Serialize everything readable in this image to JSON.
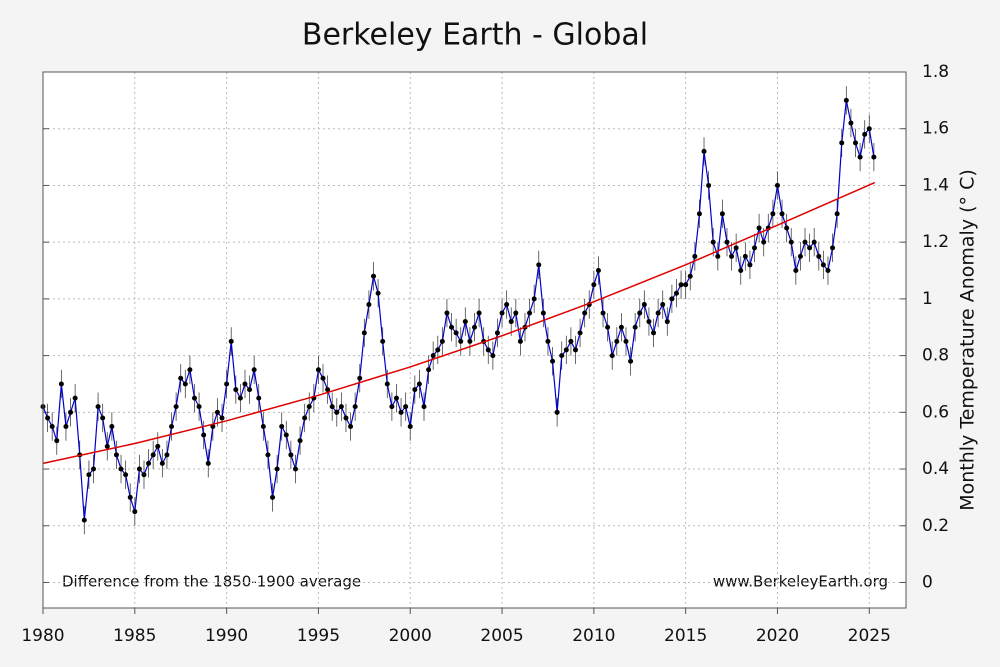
{
  "chart_data": {
    "type": "line",
    "title": "Berkeley Earth - Global",
    "y_label": "Monthly Temperature Anomaly (° C)",
    "annotations": [
      "Difference from the 1850-1900 average",
      "www.BerkeleyEarth.org"
    ],
    "xlim": [
      1980,
      2027
    ],
    "xticks": [
      1980,
      1985,
      1990,
      1995,
      2000,
      2005,
      2010,
      2015,
      2020,
      2025
    ],
    "ylim": [
      -0.09,
      1.8
    ],
    "yticks": [
      0,
      0.2,
      0.4,
      0.6,
      0.8,
      1,
      1.2,
      1.4,
      1.6,
      1.8
    ],
    "grid": true,
    "series": [
      {
        "color": "#0000cc",
        "marker_color": "#000000",
        "error": 0.05,
        "x": [
          1980,
          1980.25,
          1980.5,
          1980.75,
          1981,
          1981.25,
          1981.5,
          1981.75,
          1982,
          1982.25,
          1982.5,
          1982.75,
          1983,
          1983.25,
          1983.5,
          1983.75,
          1984,
          1984.25,
          1984.5,
          1984.75,
          1985,
          1985.25,
          1985.5,
          1985.75,
          1986,
          1986.25,
          1986.5,
          1986.75,
          1987,
          1987.25,
          1987.5,
          1987.75,
          1988,
          1988.25,
          1988.5,
          1988.75,
          1989,
          1989.25,
          1989.5,
          1989.75,
          1990,
          1990.25,
          1990.5,
          1990.75,
          1991,
          1991.25,
          1991.5,
          1991.75,
          1992,
          1992.25,
          1992.5,
          1992.75,
          1993,
          1993.25,
          1993.5,
          1993.75,
          1994,
          1994.25,
          1994.5,
          1994.75,
          1995,
          1995.25,
          1995.5,
          1995.75,
          1996,
          1996.25,
          1996.5,
          1996.75,
          1997,
          1997.25,
          1997.5,
          1997.75,
          1998,
          1998.25,
          1998.5,
          1998.75,
          1999,
          1999.25,
          1999.5,
          1999.75,
          2000,
          2000.25,
          2000.5,
          2000.75,
          2001,
          2001.25,
          2001.5,
          2001.75,
          2002,
          2002.25,
          2002.5,
          2002.75,
          2003,
          2003.25,
          2003.5,
          2003.75,
          2004,
          2004.25,
          2004.5,
          2004.75,
          2005,
          2005.25,
          2005.5,
          2005.75,
          2006,
          2006.25,
          2006.5,
          2006.75,
          2007,
          2007.25,
          2007.5,
          2007.75,
          2008,
          2008.25,
          2008.5,
          2008.75,
          2009,
          2009.25,
          2009.5,
          2009.75,
          2010,
          2010.25,
          2010.5,
          2010.75,
          2011,
          2011.25,
          2011.5,
          2011.75,
          2012,
          2012.25,
          2012.5,
          2012.75,
          2013,
          2013.25,
          2013.5,
          2013.75,
          2014,
          2014.25,
          2014.5,
          2014.75,
          2015,
          2015.25,
          2015.5,
          2015.75,
          2016,
          2016.25,
          2016.5,
          2016.75,
          2017,
          2017.25,
          2017.5,
          2017.75,
          2018,
          2018.25,
          2018.5,
          2018.75,
          2019,
          2019.25,
          2019.5,
          2019.75,
          2020,
          2020.25,
          2020.5,
          2020.75,
          2021,
          2021.25,
          2021.5,
          2021.75,
          2022,
          2022.25,
          2022.5,
          2022.75,
          2023,
          2023.25,
          2023.5,
          2023.75,
          2024,
          2024.25,
          2024.5,
          2024.75,
          2025,
          2025.25
        ],
        "values": [
          0.62,
          0.58,
          0.55,
          0.5,
          0.7,
          0.55,
          0.6,
          0.65,
          0.45,
          0.22,
          0.38,
          0.4,
          0.62,
          0.58,
          0.48,
          0.55,
          0.45,
          0.4,
          0.38,
          0.3,
          0.25,
          0.4,
          0.38,
          0.42,
          0.45,
          0.48,
          0.42,
          0.45,
          0.55,
          0.62,
          0.72,
          0.7,
          0.75,
          0.65,
          0.62,
          0.52,
          0.42,
          0.55,
          0.6,
          0.58,
          0.7,
          0.85,
          0.68,
          0.65,
          0.7,
          0.68,
          0.75,
          0.65,
          0.55,
          0.45,
          0.3,
          0.4,
          0.55,
          0.52,
          0.45,
          0.4,
          0.5,
          0.58,
          0.62,
          0.65,
          0.75,
          0.72,
          0.68,
          0.62,
          0.6,
          0.62,
          0.58,
          0.55,
          0.62,
          0.72,
          0.88,
          0.98,
          1.08,
          1.02,
          0.85,
          0.7,
          0.62,
          0.65,
          0.6,
          0.62,
          0.55,
          0.68,
          0.7,
          0.62,
          0.75,
          0.8,
          0.82,
          0.85,
          0.95,
          0.9,
          0.88,
          0.85,
          0.92,
          0.85,
          0.9,
          0.95,
          0.85,
          0.82,
          0.8,
          0.88,
          0.95,
          0.98,
          0.92,
          0.95,
          0.85,
          0.9,
          0.95,
          1.0,
          1.12,
          0.95,
          0.85,
          0.78,
          0.6,
          0.8,
          0.82,
          0.85,
          0.82,
          0.88,
          0.95,
          0.98,
          1.05,
          1.1,
          0.95,
          0.9,
          0.8,
          0.85,
          0.9,
          0.85,
          0.78,
          0.9,
          0.95,
          0.98,
          0.92,
          0.88,
          0.95,
          0.98,
          0.92,
          1.0,
          1.02,
          1.05,
          1.05,
          1.08,
          1.15,
          1.3,
          1.52,
          1.4,
          1.2,
          1.15,
          1.3,
          1.2,
          1.15,
          1.18,
          1.1,
          1.15,
          1.12,
          1.18,
          1.25,
          1.2,
          1.25,
          1.3,
          1.4,
          1.3,
          1.25,
          1.2,
          1.1,
          1.15,
          1.2,
          1.18,
          1.2,
          1.15,
          1.12,
          1.1,
          1.18,
          1.3,
          1.55,
          1.7,
          1.62,
          1.55,
          1.5,
          1.58,
          1.6,
          1.5
        ]
      },
      {
        "color": "#e00000",
        "x": [
          1980,
          1985,
          1990,
          1995,
          2000,
          2005,
          2010,
          2015,
          2020,
          2025.3
        ],
        "values": [
          0.42,
          0.49,
          0.57,
          0.66,
          0.76,
          0.87,
          0.99,
          1.12,
          1.26,
          1.41
        ]
      }
    ]
  }
}
